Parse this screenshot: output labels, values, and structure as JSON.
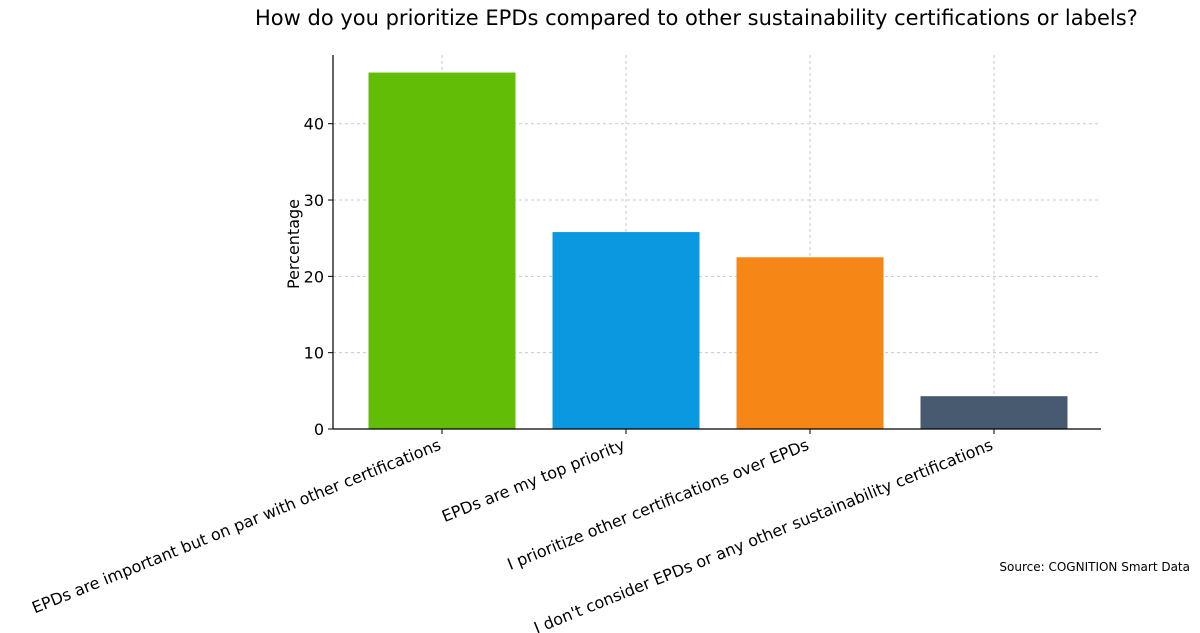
{
  "chart_data": {
    "type": "bar",
    "title": "How do you prioritize EPDs compared to other sustainability certifications or labels?",
    "xlabel": "",
    "ylabel": "Percentage",
    "ylim": [
      0,
      49
    ],
    "yticks": [
      0,
      10,
      20,
      30,
      40
    ],
    "grid": true,
    "categories": [
      "EPDs are important but on par with other certifications",
      "EPDs are my top priority",
      "I prioritize other certifications over EPDs",
      "I don't consider EPDs or any other sustainability certifications"
    ],
    "values": [
      46.7,
      25.8,
      22.5,
      4.3
    ],
    "colors": [
      "#62bd06",
      "#0a98e0",
      "#f68717",
      "#485a70"
    ]
  },
  "source": "Source: COGNITION Smart Data"
}
